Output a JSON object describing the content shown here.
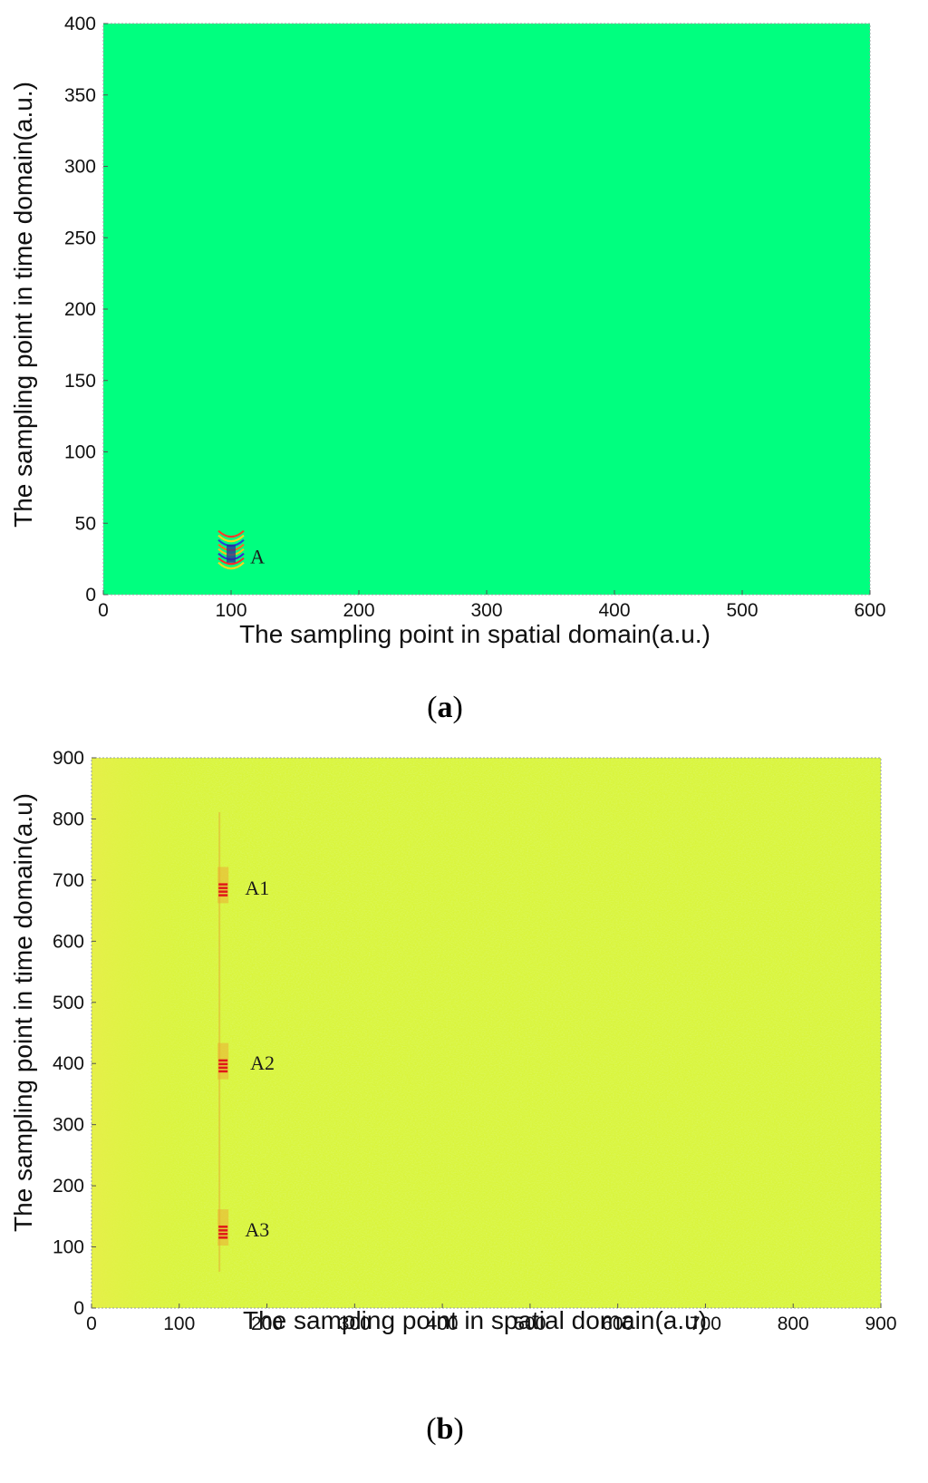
{
  "chart_data": [
    {
      "type": "heatmap",
      "panel_label": "a",
      "xlabel": "The sampling point in spatial domain(a.u.)",
      "ylabel": "The sampling point in time domain(a.u.)",
      "xlim": [
        0,
        600
      ],
      "ylim": [
        0,
        400
      ],
      "xticks": [
        0,
        100,
        200,
        300,
        400,
        500,
        600
      ],
      "yticks": [
        0,
        50,
        100,
        150,
        200,
        250,
        300,
        350,
        400
      ],
      "background_color": "#00ff7f",
      "features": [
        {
          "x": 100,
          "y": 25,
          "kind": "hyperbolic-wavelet"
        }
      ],
      "annotations": [
        {
          "text": "A",
          "x": 115,
          "y": 22
        }
      ]
    },
    {
      "type": "heatmap",
      "panel_label": "b",
      "xlabel": "The sampling point in spatial domain(a.u)",
      "ylabel": "The sampling point in time domain(a.u)",
      "xlim": [
        0,
        900
      ],
      "ylim": [
        0,
        900
      ],
      "xticks": [
        0,
        100,
        200,
        300,
        400,
        500,
        600,
        700,
        800,
        900
      ],
      "yticks": [
        0,
        100,
        200,
        300,
        400,
        500,
        600,
        700,
        800,
        900
      ],
      "background_color": "#d9f53a",
      "features": [
        {
          "x": 150,
          "y": 680,
          "kind": "red-streak"
        },
        {
          "x": 150,
          "y": 392,
          "kind": "red-streak"
        },
        {
          "x": 150,
          "y": 120,
          "kind": "red-streak"
        }
      ],
      "annotations": [
        {
          "text": "A1",
          "x": 175,
          "y": 676
        },
        {
          "text": "A2",
          "x": 181,
          "y": 390
        },
        {
          "text": "A3",
          "x": 175,
          "y": 117
        }
      ]
    }
  ]
}
